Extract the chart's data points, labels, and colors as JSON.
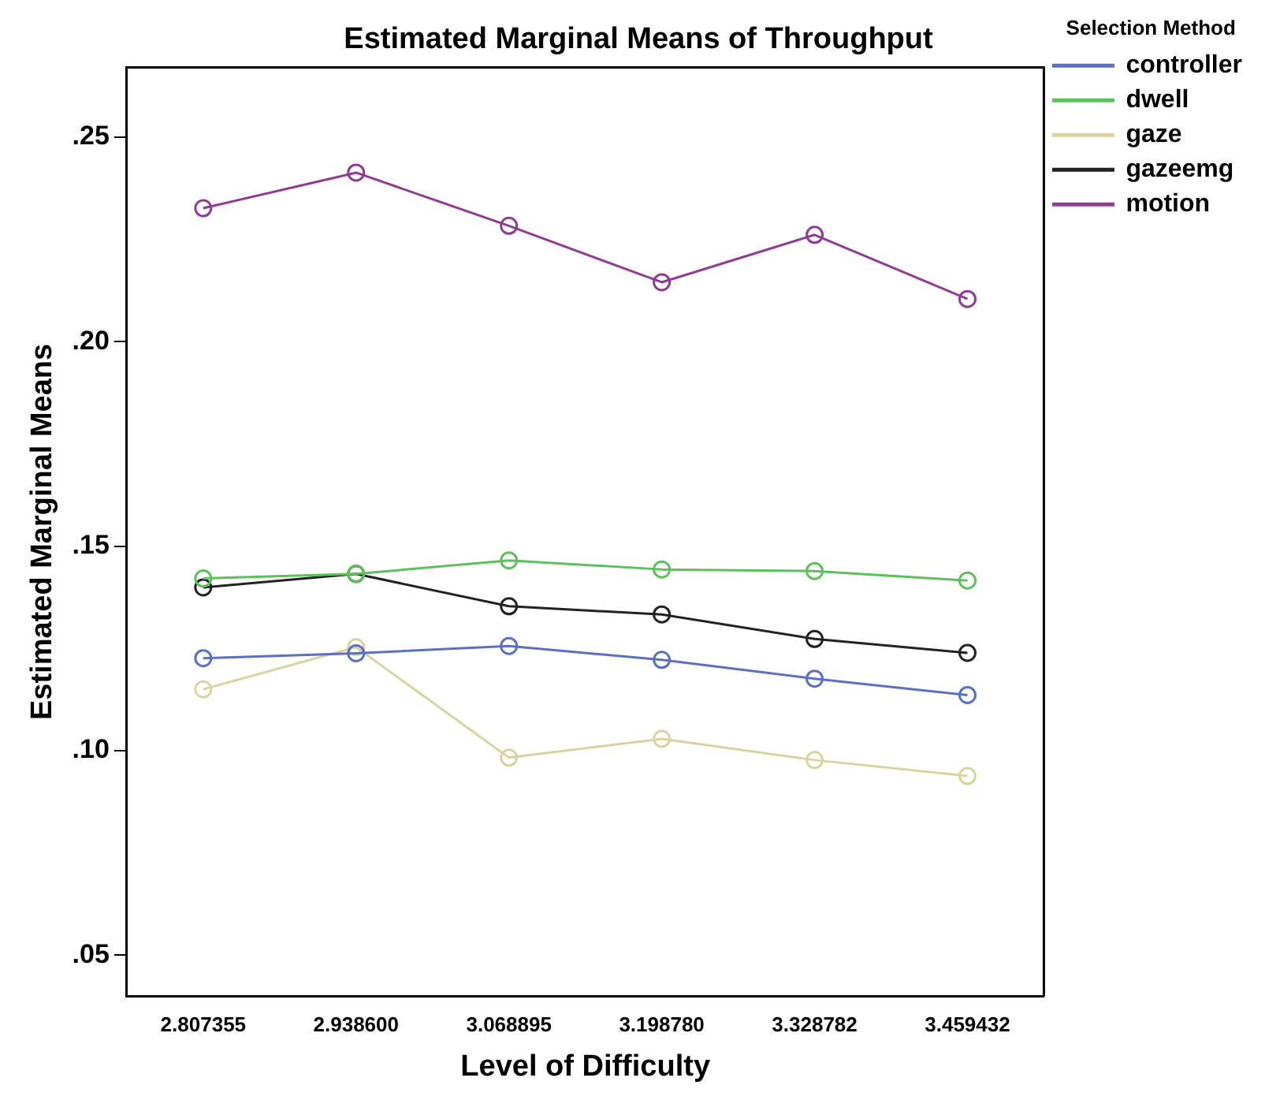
{
  "chart_data": {
    "type": "line",
    "title": "Estimated Marginal Means of Throughput",
    "xlabel": "Level of Difficulty",
    "ylabel": "Estimated Marginal Means",
    "legend_title": "Selection Method",
    "legend": "right",
    "grid": false,
    "marker": "circle",
    "line_style": "solid",
    "categories": [
      "2.807355",
      "2.938600",
      "3.068895",
      "3.198780",
      "3.328782",
      "3.459432"
    ],
    "ylim": [
      0.04,
      0.267
    ],
    "yticks": [
      {
        "value": 0.05,
        "label": ".05"
      },
      {
        "value": 0.1,
        "label": ".10"
      },
      {
        "value": 0.15,
        "label": ".15"
      },
      {
        "value": 0.2,
        "label": ".20"
      },
      {
        "value": 0.25,
        "label": ".25"
      }
    ],
    "series": [
      {
        "name": "controller",
        "color": "#5b70c4",
        "values": [
          0.1226,
          0.1238,
          0.1256,
          0.1222,
          0.1176,
          0.1136
        ]
      },
      {
        "name": "dwell",
        "color": "#5cc15c",
        "values": [
          0.1421,
          0.1432,
          0.1465,
          0.1443,
          0.1439,
          0.1416
        ]
      },
      {
        "name": "gaze",
        "color": "#d8d3a0",
        "values": [
          0.115,
          0.1253,
          0.0983,
          0.1029,
          0.0977,
          0.0938
        ]
      },
      {
        "name": "gazeemg",
        "color": "#222222",
        "values": [
          0.1399,
          0.1432,
          0.1353,
          0.1333,
          0.1273,
          0.1239
        ]
      },
      {
        "name": "motion",
        "color": "#8e3d92",
        "values": [
          0.2326,
          0.2413,
          0.2283,
          0.2145,
          0.2261,
          0.2104
        ]
      }
    ]
  }
}
